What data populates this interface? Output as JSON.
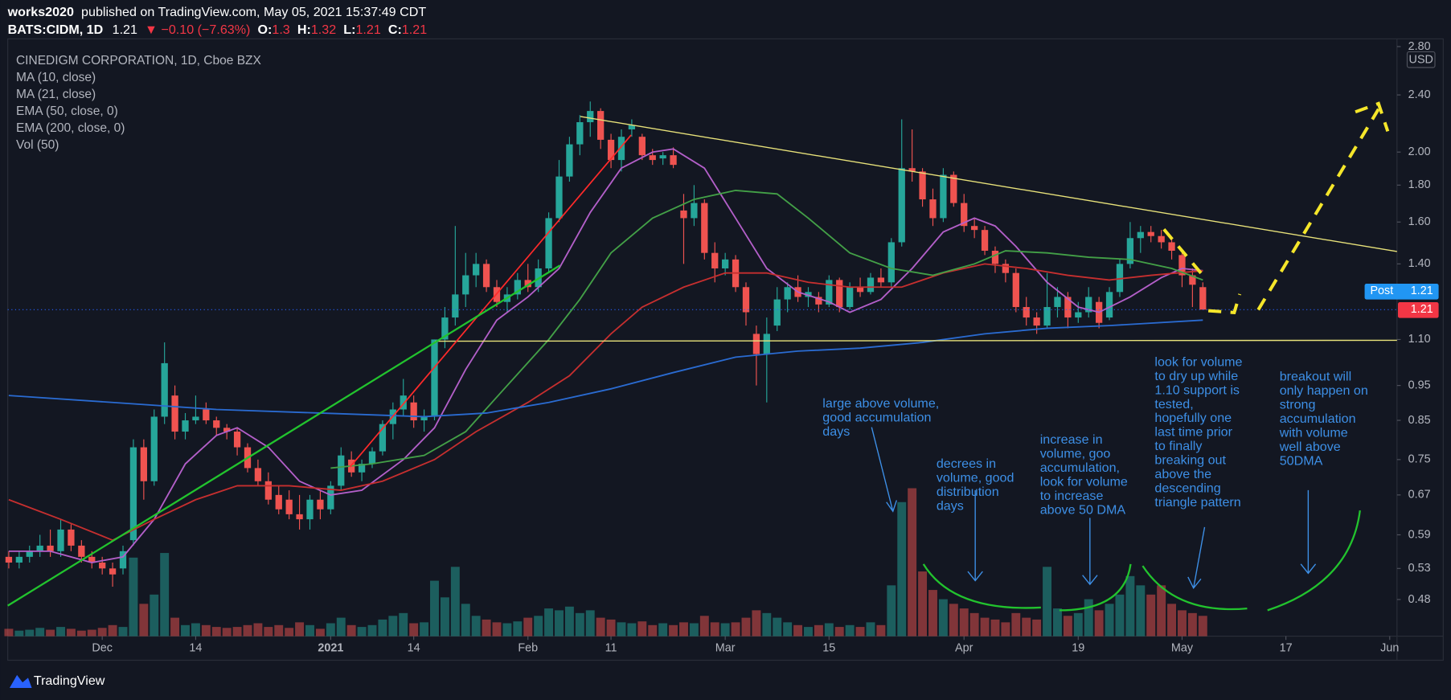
{
  "header": {
    "author": "works2020",
    "published": "published on TradingView.com, May 05, 2021 15:37:49 CDT",
    "symbol": "BATS:CIDM, 1D",
    "last": 1.21,
    "change": "▼ −0.10 (−7.63%)",
    "ohlc_labels": [
      "O:",
      "H:",
      "L:",
      "C:"
    ],
    "ohlc": [
      1.3,
      1.32,
      1.21,
      1.21
    ]
  },
  "chart_data": {
    "type": "candlestick",
    "title": "CINEDIGM CORPORATION, 1D, Cboe BZX",
    "currency": "USD",
    "log_scale": true,
    "up_color": "#26a69a",
    "down_color": "#ef5350",
    "xlim": [
      -0.1,
      133.7
    ],
    "ylim": [
      0.427,
      2.87
    ],
    "xticks": [
      {
        "value": 9,
        "label": "Dec"
      },
      {
        "value": 18,
        "label": "14"
      },
      {
        "value": 31,
        "label": "2021"
      },
      {
        "value": 39,
        "label": "14"
      },
      {
        "value": 50,
        "label": "Feb"
      },
      {
        "value": 58,
        "label": "11"
      },
      {
        "value": 69,
        "label": "Mar"
      },
      {
        "value": 79,
        "label": "15"
      },
      {
        "value": 92,
        "label": "Apr"
      },
      {
        "value": 103,
        "label": "19"
      },
      {
        "value": 113,
        "label": "May"
      },
      {
        "value": 123,
        "label": "17"
      },
      {
        "value": 133,
        "label": "Jun"
      }
    ],
    "yticks": [
      0.48,
      0.53,
      0.59,
      0.67,
      0.75,
      0.85,
      0.95,
      {
        "value": 1.1,
        "label": "1.10"
      },
      {
        "value": 1.4,
        "label": "1.40"
      },
      {
        "value": 1.6,
        "label": "1.60"
      },
      {
        "value": 1.8,
        "label": "1.80"
      },
      {
        "value": 2.0,
        "label": "2.00"
      },
      {
        "value": 2.4,
        "label": "2.40"
      },
      {
        "value": 2.8,
        "label": "2.80"
      }
    ],
    "ohlc": [
      [
        0.55,
        0.56,
        0.53,
        0.54
      ],
      [
        0.54,
        0.56,
        0.53,
        0.55
      ],
      [
        0.55,
        0.57,
        0.54,
        0.56
      ],
      [
        0.56,
        0.59,
        0.55,
        0.57
      ],
      [
        0.57,
        0.6,
        0.55,
        0.56
      ],
      [
        0.56,
        0.62,
        0.55,
        0.6
      ],
      [
        0.6,
        0.61,
        0.56,
        0.57
      ],
      [
        0.57,
        0.58,
        0.54,
        0.55
      ],
      [
        0.55,
        0.56,
        0.53,
        0.54
      ],
      [
        0.54,
        0.55,
        0.52,
        0.53
      ],
      [
        0.53,
        0.54,
        0.5,
        0.52
      ],
      [
        0.53,
        0.57,
        0.52,
        0.56
      ],
      [
        0.58,
        0.8,
        0.57,
        0.78
      ],
      [
        0.78,
        0.8,
        0.66,
        0.7
      ],
      [
        0.7,
        0.88,
        0.69,
        0.86
      ],
      [
        0.86,
        1.09,
        0.84,
        1.02
      ],
      [
        0.92,
        0.95,
        0.8,
        0.82
      ],
      [
        0.82,
        0.87,
        0.8,
        0.85
      ],
      [
        0.85,
        0.92,
        0.84,
        0.86
      ],
      [
        0.88,
        0.9,
        0.84,
        0.85
      ],
      [
        0.85,
        0.86,
        0.81,
        0.83
      ],
      [
        0.83,
        0.84,
        0.8,
        0.82
      ],
      [
        0.82,
        0.83,
        0.76,
        0.78
      ],
      [
        0.78,
        0.79,
        0.72,
        0.73
      ],
      [
        0.73,
        0.75,
        0.69,
        0.7
      ],
      [
        0.7,
        0.72,
        0.65,
        0.66
      ],
      [
        0.67,
        0.69,
        0.63,
        0.64
      ],
      [
        0.66,
        0.68,
        0.62,
        0.63
      ],
      [
        0.63,
        0.67,
        0.6,
        0.62
      ],
      [
        0.62,
        0.67,
        0.6,
        0.66
      ],
      [
        0.66,
        0.68,
        0.62,
        0.64
      ],
      [
        0.64,
        0.7,
        0.63,
        0.69
      ],
      [
        0.69,
        0.78,
        0.68,
        0.76
      ],
      [
        0.75,
        0.77,
        0.71,
        0.72
      ],
      [
        0.72,
        0.75,
        0.7,
        0.74
      ],
      [
        0.74,
        0.78,
        0.73,
        0.77
      ],
      [
        0.77,
        0.85,
        0.76,
        0.84
      ],
      [
        0.84,
        0.9,
        0.8,
        0.88
      ],
      [
        0.88,
        0.97,
        0.86,
        0.92
      ],
      [
        0.9,
        0.92,
        0.83,
        0.85
      ],
      [
        0.85,
        0.88,
        0.82,
        0.86
      ],
      [
        0.86,
        1.1,
        0.85,
        1.1
      ],
      [
        1.1,
        1.22,
        1.07,
        1.18
      ],
      [
        1.18,
        1.58,
        1.15,
        1.27
      ],
      [
        1.27,
        1.45,
        1.22,
        1.35
      ],
      [
        1.35,
        1.45,
        1.3,
        1.4
      ],
      [
        1.4,
        1.42,
        1.28,
        1.3
      ],
      [
        1.3,
        1.33,
        1.22,
        1.24
      ],
      [
        1.24,
        1.3,
        1.2,
        1.27
      ],
      [
        1.27,
        1.36,
        1.25,
        1.33
      ],
      [
        1.33,
        1.4,
        1.28,
        1.3
      ],
      [
        1.3,
        1.42,
        1.28,
        1.38
      ],
      [
        1.38,
        1.65,
        1.36,
        1.62
      ],
      [
        1.62,
        1.95,
        1.6,
        1.85
      ],
      [
        1.85,
        2.1,
        1.82,
        2.05
      ],
      [
        2.05,
        2.25,
        1.98,
        2.2
      ],
      [
        2.2,
        2.35,
        2.1,
        2.28
      ],
      [
        2.28,
        2.3,
        2.02,
        2.08
      ],
      [
        2.08,
        2.12,
        1.9,
        1.95
      ],
      [
        1.95,
        2.15,
        1.88,
        2.1
      ],
      [
        2.15,
        2.22,
        2.1,
        2.18
      ],
      [
        2.1,
        2.12,
        1.95,
        1.98
      ],
      [
        1.98,
        2.02,
        1.92,
        1.95
      ],
      [
        1.96,
        2.0,
        1.92,
        1.98
      ],
      [
        1.98,
        2.03,
        1.9,
        1.92
      ],
      [
        1.66,
        1.75,
        1.4,
        1.62
      ],
      [
        1.62,
        1.8,
        1.58,
        1.7
      ],
      [
        1.7,
        1.72,
        1.42,
        1.45
      ],
      [
        1.45,
        1.5,
        1.32,
        1.38
      ],
      [
        1.38,
        1.45,
        1.35,
        1.42
      ],
      [
        1.42,
        1.44,
        1.28,
        1.3
      ],
      [
        1.3,
        1.32,
        1.15,
        1.2
      ],
      [
        1.12,
        1.15,
        0.95,
        1.05
      ],
      [
        1.05,
        1.18,
        0.9,
        1.12
      ],
      [
        1.15,
        1.3,
        1.13,
        1.25
      ],
      [
        1.25,
        1.32,
        1.2,
        1.3
      ],
      [
        1.3,
        1.35,
        1.24,
        1.26
      ],
      [
        1.26,
        1.3,
        1.22,
        1.28
      ],
      [
        1.26,
        1.28,
        1.2,
        1.23
      ],
      [
        1.23,
        1.35,
        1.22,
        1.33
      ],
      [
        1.33,
        1.34,
        1.2,
        1.22
      ],
      [
        1.22,
        1.32,
        1.21,
        1.3
      ],
      [
        1.3,
        1.34,
        1.26,
        1.28
      ],
      [
        1.28,
        1.36,
        1.27,
        1.34
      ],
      [
        1.34,
        1.38,
        1.3,
        1.32
      ],
      [
        1.32,
        1.52,
        1.3,
        1.5
      ],
      [
        1.5,
        2.22,
        1.48,
        1.9
      ],
      [
        1.9,
        2.15,
        1.82,
        1.88
      ],
      [
        1.88,
        1.9,
        1.68,
        1.72
      ],
      [
        1.72,
        1.78,
        1.58,
        1.62
      ],
      [
        1.62,
        1.9,
        1.6,
        1.86
      ],
      [
        1.86,
        1.88,
        1.68,
        1.7
      ],
      [
        1.7,
        1.75,
        1.55,
        1.58
      ],
      [
        1.58,
        1.62,
        1.52,
        1.56
      ],
      [
        1.56,
        1.58,
        1.44,
        1.46
      ],
      [
        1.46,
        1.48,
        1.36,
        1.4
      ],
      [
        1.4,
        1.42,
        1.32,
        1.36
      ],
      [
        1.36,
        1.38,
        1.2,
        1.22
      ],
      [
        1.22,
        1.26,
        1.15,
        1.18
      ],
      [
        1.18,
        1.2,
        1.12,
        1.15
      ],
      [
        1.15,
        1.36,
        1.14,
        1.22
      ],
      [
        1.22,
        1.3,
        1.18,
        1.26
      ],
      [
        1.26,
        1.28,
        1.14,
        1.18
      ],
      [
        1.18,
        1.24,
        1.16,
        1.2
      ],
      [
        1.2,
        1.3,
        1.18,
        1.26
      ],
      [
        1.24,
        1.26,
        1.14,
        1.16
      ],
      [
        1.18,
        1.3,
        1.17,
        1.28
      ],
      [
        1.28,
        1.42,
        1.26,
        1.4
      ],
      [
        1.4,
        1.6,
        1.38,
        1.52
      ],
      [
        1.52,
        1.58,
        1.45,
        1.55
      ],
      [
        1.55,
        1.58,
        1.5,
        1.53
      ],
      [
        1.53,
        1.56,
        1.47,
        1.5
      ],
      [
        1.5,
        1.52,
        1.42,
        1.46
      ],
      [
        1.44,
        1.46,
        1.3,
        1.35
      ],
      [
        1.35,
        1.38,
        1.22,
        1.31
      ],
      [
        1.3,
        1.32,
        1.21,
        1.21
      ]
    ],
    "volume_name": "Vol (50)",
    "volume": [
      8,
      6,
      7,
      9,
      7,
      10,
      8,
      6,
      7,
      9,
      12,
      10,
      85,
      35,
      45,
      90,
      20,
      12,
      14,
      12,
      10,
      9,
      10,
      12,
      14,
      10,
      12,
      9,
      15,
      12,
      8,
      14,
      20,
      12,
      10,
      12,
      18,
      22,
      25,
      14,
      15,
      60,
      42,
      75,
      35,
      22,
      18,
      15,
      14,
      16,
      20,
      22,
      30,
      28,
      32,
      25,
      28,
      20,
      18,
      15,
      14,
      16,
      12,
      14,
      12,
      15,
      14,
      22,
      15,
      14,
      15,
      20,
      28,
      25,
      20,
      15,
      12,
      10,
      12,
      14,
      10,
      12,
      10,
      15,
      12,
      55,
      145,
      160,
      70,
      50,
      40,
      35,
      30,
      25,
      20,
      18,
      15,
      25,
      20,
      18,
      75,
      30,
      22,
      25,
      40,
      28,
      35,
      45,
      65,
      55,
      45,
      55,
      35,
      28,
      25,
      22
    ],
    "series": [
      {
        "name": "MA (10, close)",
        "color": "#b35fc9",
        "x": [
          0,
          4,
          8,
          11,
          14,
          17,
          20,
          22,
          25,
          28,
          31,
          34,
          38,
          41,
          44,
          47,
          50,
          53,
          56,
          59,
          62,
          64,
          67,
          70,
          73,
          76,
          79,
          81,
          84,
          87,
          90,
          93,
          95,
          97,
          100,
          103,
          105,
          108,
          111,
          113,
          115
        ],
        "values": [
          0.56,
          0.56,
          0.54,
          0.55,
          0.62,
          0.74,
          0.81,
          0.83,
          0.78,
          0.7,
          0.67,
          0.68,
          0.75,
          0.83,
          1.0,
          1.17,
          1.26,
          1.38,
          1.65,
          1.9,
          2.0,
          2.02,
          1.9,
          1.62,
          1.38,
          1.28,
          1.24,
          1.2,
          1.25,
          1.38,
          1.55,
          1.62,
          1.58,
          1.48,
          1.32,
          1.22,
          1.2,
          1.26,
          1.34,
          1.38,
          1.37
        ]
      },
      {
        "name": "MA (21, close)",
        "color": "#c62f2f",
        "x": [
          0,
          5,
          10,
          14,
          18,
          22,
          27,
          32,
          36,
          41,
          45,
          50,
          54,
          58,
          61,
          65,
          69,
          73,
          77,
          81,
          86,
          90,
          94,
          98,
          102,
          106,
          110,
          115
        ],
        "values": [
          0.66,
          0.62,
          0.58,
          0.62,
          0.66,
          0.69,
          0.69,
          0.68,
          0.7,
          0.75,
          0.82,
          0.9,
          0.98,
          1.12,
          1.22,
          1.3,
          1.36,
          1.36,
          1.32,
          1.3,
          1.3,
          1.36,
          1.4,
          1.38,
          1.35,
          1.33,
          1.35,
          1.37
        ]
      },
      {
        "name": "EMA (50, close, 0)",
        "color": "#43a047",
        "x": [
          31,
          35,
          40,
          44,
          48,
          52,
          55,
          58,
          62,
          66,
          70,
          74,
          77,
          81,
          85,
          89,
          93,
          96,
          100,
          104,
          108,
          112,
          115
        ],
        "values": [
          0.73,
          0.74,
          0.76,
          0.82,
          0.95,
          1.1,
          1.25,
          1.45,
          1.62,
          1.72,
          1.77,
          1.75,
          1.62,
          1.45,
          1.38,
          1.35,
          1.4,
          1.46,
          1.45,
          1.43,
          1.42,
          1.38,
          1.33
        ]
      },
      {
        "name": "EMA (200, close, 0)",
        "color": "#2a6bd1",
        "x": [
          0,
          10,
          20,
          30,
          40,
          46,
          52,
          58,
          64,
          70,
          76,
          82,
          88,
          94,
          100,
          106,
          115
        ],
        "values": [
          0.92,
          0.9,
          0.88,
          0.87,
          0.86,
          0.87,
          0.9,
          0.94,
          0.99,
          1.04,
          1.06,
          1.07,
          1.09,
          1.12,
          1.14,
          1.15,
          1.17
        ]
      }
    ],
    "post_label": "Post",
    "post_price": 1.21,
    "last_price": 1.21,
    "annotations": [
      {
        "lines": [
          "large above volume,",
          "good accumulation",
          "days"
        ]
      },
      {
        "lines": [
          "decrees in",
          "volume, good",
          "distribution",
          "days"
        ]
      },
      {
        "lines": [
          "increase in",
          "volume, goo",
          "accumulation,",
          "look for volume",
          "to increase",
          "above 50 DMA"
        ]
      },
      {
        "lines": [
          "look for volume",
          "to dry up while",
          "1.10 support is",
          "tested,",
          "hopefully one",
          "last time prior",
          "to finally",
          "breaking out",
          "above the",
          "descending",
          "triangle pattern"
        ]
      },
      {
        "lines": [
          "breakout will",
          "only happen on",
          "strong",
          "accumulation",
          "with volume",
          "well above",
          "50DMA"
        ]
      }
    ]
  },
  "footer": {
    "brand": "TradingView"
  }
}
